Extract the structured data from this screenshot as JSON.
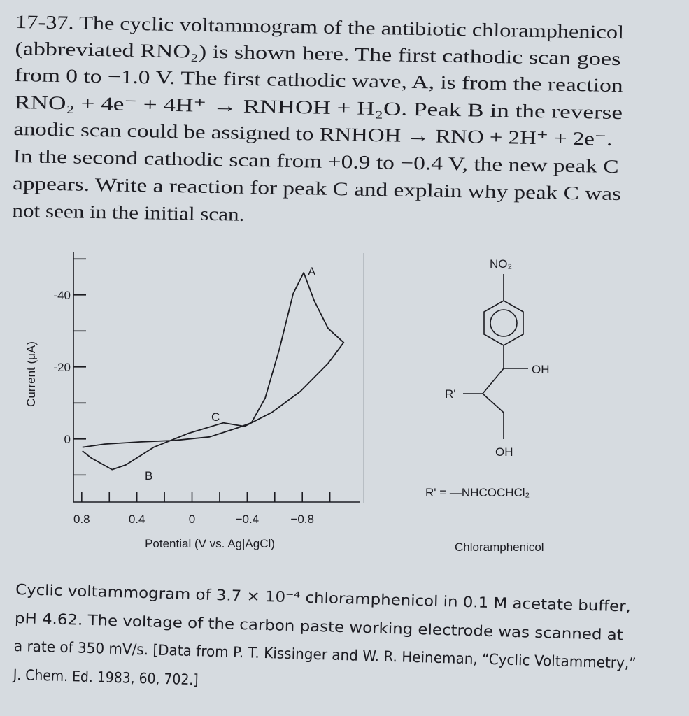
{
  "problem": {
    "lines": [
      "17-37. The cyclic voltammogram of the antibiotic chloramphenicol",
      "(abbreviated RNO₂) is shown here. The first cathodic scan goes",
      "from 0 to −1.0 V. The first cathodic wave, A, is from the reaction",
      "RNO₂ + 4e⁻ + 4H⁺ → RNHOH + H₂O. Peak B in the reverse",
      "anodic scan could be assigned to RNHOH → RNO + 2H⁺ + 2e⁻.",
      "In the second cathodic scan from +0.9 to −0.4 V, the new peak C",
      "appears. Write a reaction for peak C and explain why peak C was",
      "not seen in the initial scan."
    ]
  },
  "chart_data": {
    "type": "line",
    "x": [
      0.795,
      0.633,
      0.38,
      0.127,
      -0.127,
      -0.33,
      -0.43,
      -0.53,
      -0.633,
      -0.734,
      -0.81,
      -0.886,
      -0.987,
      -1.1,
      -0.987,
      -0.785,
      -0.58,
      -0.38,
      -0.228,
      0.025,
      0.278,
      0.48,
      0.58,
      0.734,
      0.795
    ],
    "values": [
      2.3,
      1.4,
      0.8,
      0.4,
      -0.6,
      -3.1,
      -4.5,
      -11.3,
      -24.9,
      -40.4,
      -46.2,
      -38.4,
      -30.7,
      -26.8,
      -21,
      -13.2,
      -7.4,
      -3.5,
      -4.5,
      -1.6,
      2.3,
      7.2,
      8.5,
      5.2,
      3.3
    ],
    "color": "#1c1c22",
    "xlim": [
      0.86,
      -1.22
    ],
    "xticks": [
      {
        "value": 0.8,
        "label": "0.8"
      },
      {
        "value": 0.4,
        "label": "0.4"
      },
      0,
      {
        "value": -0.4,
        "label": "−0.4"
      },
      {
        "value": -0.8,
        "label": "−0.8"
      }
    ],
    "xminor_ticks": [
      0.6,
      0.2,
      -0.2,
      -0.6,
      -1.0
    ],
    "ylim": [
      17.5,
      -52
    ],
    "yticks": [
      0,
      -20,
      -40
    ],
    "yminor_ticks": [
      10,
      -10,
      -30,
      -50
    ],
    "xlabel": "Potential (V vs. Ag|AgCl)",
    "ylabel": "Current (μA)",
    "annotations": [
      "A",
      "B",
      "C"
    ]
  },
  "structure": {
    "top": "NO₂",
    "right_group": "OH",
    "left_group": "R'",
    "bottom_group": "OH",
    "definition": "R' = —NHCOCHCl₂",
    "name": "Chloramphenicol"
  },
  "caption": {
    "lines": [
      "Cyclic voltammogram of 3.7 × 10⁻⁴ chloramphenicol in 0.1 M acetate buffer,",
      "pH 4.62. The voltage of the carbon paste working electrode was scanned at",
      "a rate of 350 mV/s. [Data from P. T. Kissinger and W. R. Heineman, “Cyclic Voltammetry,”",
      "J. Chem. Ed. 1983, 60, 702.]"
    ]
  }
}
